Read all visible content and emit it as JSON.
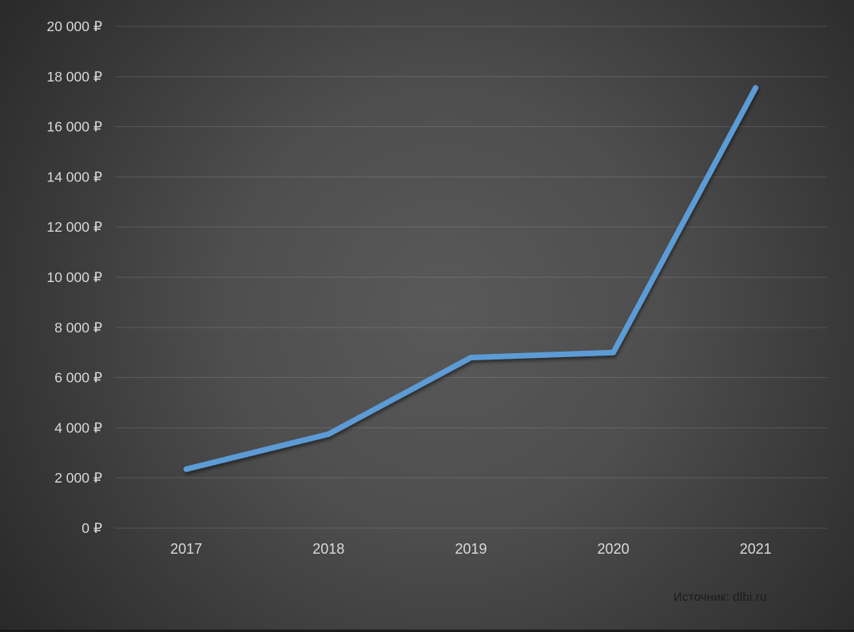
{
  "chart_data": {
    "type": "line",
    "categories": [
      "2017",
      "2018",
      "2019",
      "2020",
      "2021"
    ],
    "values": [
      2350,
      3750,
      6800,
      7000,
      17550
    ],
    "y_tick_labels": [
      "0 ₽",
      "2 000 ₽",
      "4 000 ₽",
      "6 000 ₽",
      "8 000 ₽",
      "10 000 ₽",
      "12 000 ₽",
      "14 000 ₽",
      "16 000 ₽",
      "18 000 ₽",
      "20 000 ₽"
    ],
    "ylim": [
      0,
      20000
    ],
    "ytick_step": 2000,
    "currency": "₽",
    "title": "",
    "xlabel": "",
    "ylabel": "",
    "grid": true,
    "legend_position": "none",
    "source": "Источник: dlbi.ru"
  },
  "colors": {
    "line": "#5b9bd5",
    "tick_label": "#d9d9d9",
    "gridline": "rgba(255,255,255,0.13)",
    "source_text": "#1b1b1b",
    "background_center": "#595959",
    "background_edge": "#262626"
  }
}
